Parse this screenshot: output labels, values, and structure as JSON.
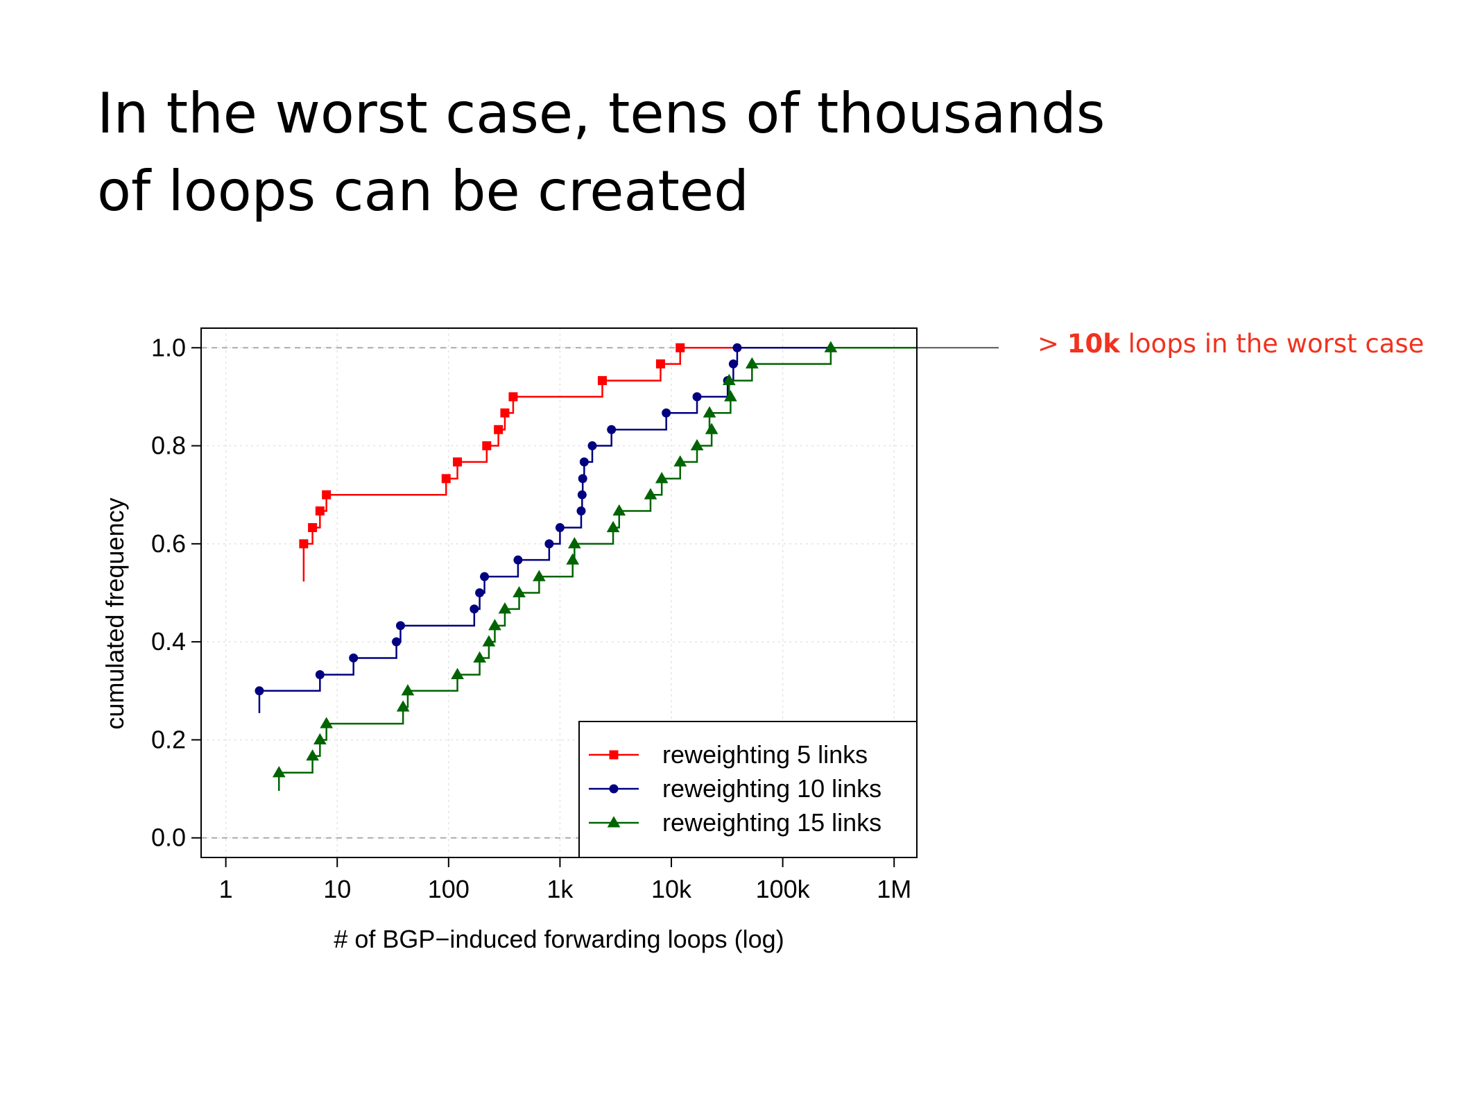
{
  "slide": {
    "title_line1": "In the worst case, tens of thousands",
    "title_line2": "of loops can be created",
    "annotation_prefix": "> ",
    "annotation_bold": "10k",
    "annotation_rest": " loops in the worst case"
  },
  "colors": {
    "series1": "#ff0000",
    "series2": "#000080",
    "series3": "#006400",
    "annotation": "#f0321e"
  },
  "chart_data": {
    "type": "line",
    "step": true,
    "xscale": "log",
    "xlabel": "# of BGP−induced forwarding loops (log)",
    "ylabel": "cumulated frequency",
    "xlim": [
      0.6,
      1600000
    ],
    "ylim": [
      -0.04,
      1.04
    ],
    "xticks": [
      1,
      10,
      100,
      1000,
      10000,
      100000,
      1000000
    ],
    "xtick_labels": [
      "1",
      "10",
      "100",
      "1k",
      "10k",
      "100k",
      "1M"
    ],
    "yticks": [
      0.0,
      0.2,
      0.4,
      0.6,
      0.8,
      1.0
    ],
    "ytick_labels": [
      "0.0",
      "0.2",
      "0.4",
      "0.6",
      "0.8",
      "1.0"
    ],
    "grid": true,
    "reference_lines_y": [
      0.0,
      1.0
    ],
    "legend_position": "bottom-right",
    "series": [
      {
        "name": "reweighting 5 links",
        "marker": "square",
        "color": "#ff0000",
        "x": [
          5,
          6,
          7,
          8,
          95,
          120,
          220,
          280,
          320,
          380,
          2400,
          8000,
          12000
        ],
        "y": [
          0.6,
          0.633,
          0.667,
          0.7,
          0.733,
          0.767,
          0.8,
          0.833,
          0.867,
          0.9,
          0.933,
          0.967,
          1.0
        ]
      },
      {
        "name": "reweighting 10 links",
        "marker": "circle",
        "color": "#000080",
        "x": [
          2,
          7,
          14,
          34,
          37,
          170,
          190,
          210,
          420,
          800,
          1000,
          1550,
          1580,
          1600,
          1650,
          1950,
          2900,
          9000,
          17000,
          32000,
          36000,
          39000
        ],
        "y": [
          0.3,
          0.333,
          0.367,
          0.4,
          0.433,
          0.467,
          0.5,
          0.533,
          0.567,
          0.6,
          0.633,
          0.667,
          0.7,
          0.733,
          0.767,
          0.8,
          0.833,
          0.867,
          0.9,
          0.933,
          0.967,
          1.0
        ]
      },
      {
        "name": "reweighting 15 links",
        "marker": "triangle",
        "color": "#006400",
        "x": [
          3,
          6,
          7,
          8,
          39,
          43,
          120,
          190,
          230,
          260,
          320,
          430,
          650,
          1300,
          1350,
          3000,
          3400,
          6500,
          8200,
          12000,
          17000,
          23000,
          22000,
          34000,
          33000,
          53000,
          270000
        ],
        "y": [
          0.133,
          0.167,
          0.2,
          0.233,
          0.267,
          0.3,
          0.333,
          0.367,
          0.4,
          0.433,
          0.467,
          0.5,
          0.533,
          0.567,
          0.6,
          0.633,
          0.667,
          0.7,
          0.733,
          0.767,
          0.8,
          0.833,
          0.867,
          0.9,
          0.933,
          0.967,
          1.0
        ]
      }
    ]
  }
}
